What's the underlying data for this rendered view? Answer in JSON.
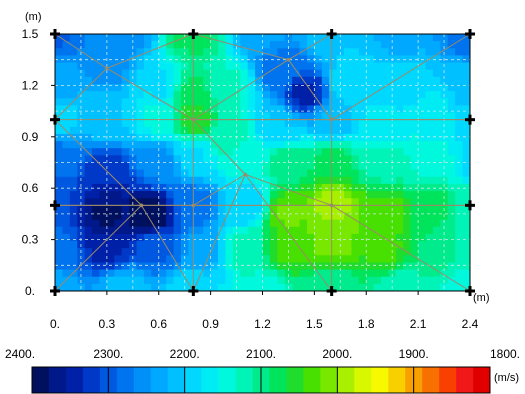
{
  "chart_data": {
    "type": "heatmap",
    "title": "",
    "xlabel": "",
    "ylabel": "",
    "x_unit": "(m)",
    "y_unit": "(m)",
    "xlim": [
      0,
      2.4
    ],
    "ylim": [
      0,
      1.5
    ],
    "x_ticks": [
      "0.",
      "0.3",
      "0.6",
      "0.9",
      "1.2",
      "1.5",
      "1.8",
      "2.1",
      "2.4"
    ],
    "x_tick_values": [
      0,
      0.3,
      0.6,
      0.9,
      1.2,
      1.5,
      1.8,
      2.1,
      2.4
    ],
    "y_ticks": [
      "0.",
      "0.3",
      "0.6",
      "0.9",
      "1.2",
      "1.5"
    ],
    "y_tick_values": [
      0,
      0.3,
      0.6,
      0.9,
      1.2,
      1.5
    ],
    "grid": true,
    "grid_style": "dashed",
    "colorbar": {
      "unit": "(m/s)",
      "ticks": [
        "2400.",
        "2300.",
        "2200.",
        "2100.",
        "2000.",
        "1900.",
        "1800."
      ],
      "tick_values": [
        2400,
        2300,
        2200,
        2100,
        2000,
        1900,
        1800
      ],
      "colors": [
        "#00105e",
        "#00188a",
        "#0020a8",
        "#0038c8",
        "#0058e0",
        "#0074ee",
        "#0090f8",
        "#00a8ff",
        "#00c0ff",
        "#00d8ff",
        "#00ecf4",
        "#00f8dc",
        "#00f4b8",
        "#00ec8c",
        "#00e45c",
        "#20dc2c",
        "#48e000",
        "#78e800",
        "#a8f000",
        "#d8f800",
        "#f8f800",
        "#f8d000",
        "#f8a000",
        "#f87000",
        "#f84000",
        "#f01818",
        "#e00000"
      ]
    },
    "sensor_points": [
      [
        0,
        1.5
      ],
      [
        0.8,
        1.5
      ],
      [
        1.6,
        1.5
      ],
      [
        2.4,
        1.5
      ],
      [
        0,
        1.0
      ],
      [
        2.4,
        1.0
      ],
      [
        0,
        0.5
      ],
      [
        2.4,
        0.5
      ],
      [
        0,
        0
      ],
      [
        0.8,
        0
      ],
      [
        1.6,
        0
      ],
      [
        2.4,
        0
      ]
    ],
    "mesh_nodes": [
      [
        0,
        1.5
      ],
      [
        0.8,
        1.5
      ],
      [
        1.6,
        1.5
      ],
      [
        2.4,
        1.5
      ],
      [
        0,
        1.0
      ],
      [
        2.4,
        1.0
      ],
      [
        0,
        0.5
      ],
      [
        2.4,
        0.5
      ],
      [
        0,
        0
      ],
      [
        0.8,
        0
      ],
      [
        1.6,
        0
      ],
      [
        2.4,
        0
      ],
      [
        0.8,
        1.0
      ],
      [
        1.6,
        1.0
      ],
      [
        1.6,
        0.5
      ],
      [
        0.8,
        0.5
      ],
      [
        0.5,
        0.5
      ],
      [
        1.35,
        1.35
      ],
      [
        1.1,
        0.68
      ],
      [
        0.3,
        1.3
      ]
    ],
    "mesh_edges": [
      [
        0,
        1
      ],
      [
        1,
        2
      ],
      [
        2,
        3
      ],
      [
        0,
        4
      ],
      [
        4,
        6
      ],
      [
        6,
        8
      ],
      [
        3,
        5
      ],
      [
        5,
        7
      ],
      [
        7,
        11
      ],
      [
        8,
        9
      ],
      [
        9,
        10
      ],
      [
        10,
        11
      ],
      [
        1,
        12
      ],
      [
        12,
        9
      ],
      [
        2,
        13
      ],
      [
        13,
        14
      ],
      [
        14,
        10
      ],
      [
        12,
        13
      ],
      [
        15,
        14
      ],
      [
        4,
        12
      ],
      [
        12,
        5
      ],
      [
        6,
        15
      ],
      [
        15,
        7
      ],
      [
        6,
        16
      ],
      [
        16,
        15
      ],
      [
        16,
        9
      ],
      [
        4,
        16
      ],
      [
        1,
        17
      ],
      [
        17,
        13
      ],
      [
        17,
        2
      ],
      [
        12,
        18
      ],
      [
        18,
        14
      ],
      [
        18,
        9
      ],
      [
        18,
        10
      ],
      [
        13,
        5
      ],
      [
        14,
        7
      ],
      [
        14,
        11
      ],
      [
        0,
        19
      ],
      [
        19,
        1
      ],
      [
        19,
        4
      ],
      [
        19,
        12
      ],
      [
        3,
        13
      ],
      [
        8,
        16
      ],
      [
        12,
        17
      ],
      [
        15,
        18
      ]
    ],
    "field_control_points": [
      [
        0.0,
        1.5,
        2290
      ],
      [
        0.4,
        1.5,
        2260
      ],
      [
        0.8,
        1.5,
        2080
      ],
      [
        1.2,
        1.5,
        2240
      ],
      [
        1.6,
        1.5,
        2200
      ],
      [
        2.0,
        1.5,
        2230
      ],
      [
        2.4,
        1.5,
        2280
      ],
      [
        0.0,
        1.2,
        2230
      ],
      [
        0.3,
        1.3,
        2250
      ],
      [
        0.6,
        1.2,
        2180
      ],
      [
        0.8,
        1.15,
        2080
      ],
      [
        1.0,
        1.2,
        2130
      ],
      [
        1.3,
        1.3,
        2280
      ],
      [
        1.45,
        1.15,
        2340
      ],
      [
        1.7,
        1.2,
        2180
      ],
      [
        2.0,
        1.2,
        2190
      ],
      [
        2.4,
        1.2,
        2210
      ],
      [
        0.0,
        1.0,
        2180
      ],
      [
        0.3,
        1.0,
        2200
      ],
      [
        0.6,
        1.0,
        2150
      ],
      [
        0.8,
        1.0,
        2050
      ],
      [
        1.0,
        0.9,
        2120
      ],
      [
        1.3,
        0.95,
        2200
      ],
      [
        1.6,
        1.0,
        2220
      ],
      [
        1.9,
        0.95,
        2170
      ],
      [
        2.2,
        1.0,
        2160
      ],
      [
        2.4,
        1.0,
        2200
      ],
      [
        0.0,
        0.8,
        2270
      ],
      [
        0.3,
        0.7,
        2330
      ],
      [
        0.6,
        0.75,
        2260
      ],
      [
        0.8,
        0.8,
        2180
      ],
      [
        1.1,
        0.75,
        2150
      ],
      [
        1.35,
        0.75,
        2100
      ],
      [
        1.6,
        0.75,
        2080
      ],
      [
        1.9,
        0.75,
        2120
      ],
      [
        2.2,
        0.75,
        2140
      ],
      [
        2.4,
        0.75,
        2180
      ],
      [
        0.0,
        0.5,
        2310
      ],
      [
        0.3,
        0.45,
        2380
      ],
      [
        0.55,
        0.45,
        2400
      ],
      [
        0.8,
        0.5,
        2280
      ],
      [
        1.1,
        0.5,
        2200
      ],
      [
        1.35,
        0.45,
        2020
      ],
      [
        1.6,
        0.5,
        1990
      ],
      [
        1.9,
        0.45,
        2030
      ],
      [
        2.2,
        0.5,
        2080
      ],
      [
        2.4,
        0.5,
        2120
      ],
      [
        0.0,
        0.25,
        2280
      ],
      [
        0.3,
        0.25,
        2340
      ],
      [
        0.6,
        0.25,
        2290
      ],
      [
        0.85,
        0.25,
        2240
      ],
      [
        1.1,
        0.25,
        2120
      ],
      [
        1.35,
        0.25,
        2040
      ],
      [
        1.6,
        0.3,
        2010
      ],
      [
        1.9,
        0.25,
        2040
      ],
      [
        2.2,
        0.25,
        2090
      ],
      [
        2.4,
        0.25,
        2130
      ],
      [
        0.0,
        0.0,
        2230
      ],
      [
        0.4,
        0.0,
        2210
      ],
      [
        0.8,
        0.0,
        2180
      ],
      [
        1.2,
        0.0,
        2140
      ],
      [
        1.6,
        0.0,
        2110
      ],
      [
        2.0,
        0.0,
        2130
      ],
      [
        2.4,
        0.0,
        2150
      ]
    ]
  }
}
